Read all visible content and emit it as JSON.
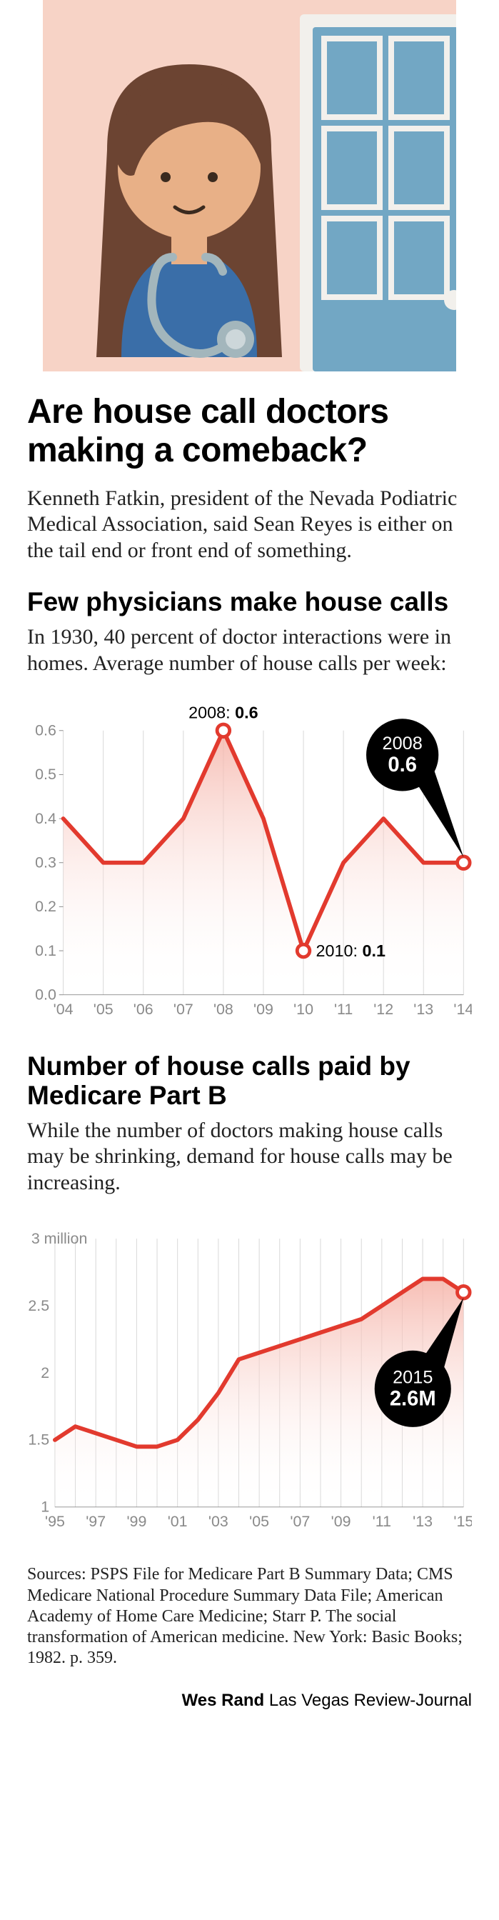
{
  "headline": "Are house call doctors making a comeback?",
  "intro": "Kenneth Fatkin, president of the Nevada Podiatric Medical Association, said Sean Reyes is either on the tail end or front end of something.",
  "chart1": {
    "title": "Few physicians make house calls",
    "subhead": "In 1930, 40 percent of doctor interactions were in homes. Average number of house calls per week:",
    "type": "area-line",
    "x_labels": [
      "'04",
      "'05",
      "'06",
      "'07",
      "'08",
      "'09",
      "'10",
      "'11",
      "'12",
      "'13",
      "'14"
    ],
    "y_ticks": [
      0.0,
      0.1,
      0.2,
      0.3,
      0.4,
      0.5,
      0.6
    ],
    "y_labels": [
      "0.0",
      "0.1",
      "0.2",
      "0.3",
      "0.4",
      "0.5",
      "0.6"
    ],
    "xlim": [
      0,
      10
    ],
    "ylim": [
      0,
      0.6
    ],
    "values": [
      0.4,
      0.3,
      0.3,
      0.4,
      0.6,
      0.4,
      0.1,
      0.3,
      0.4,
      0.3,
      0.3
    ],
    "peak_label_year": "2008:",
    "peak_label_val": "0.6",
    "min_label_year": "2010:",
    "min_label_val": "0.1",
    "callout_year": "2008",
    "callout_val": "0.6",
    "line_color": "#e23a2e",
    "fill_top": "#f5b3a8",
    "fill_bottom": "#ffffff",
    "grid_color": "#d7d7d7",
    "text_color": "#8a8a8a",
    "line_width": 6,
    "marker_r": 9,
    "callout_r": 52,
    "legend_pos": "none"
  },
  "chart2": {
    "title": "Number of house calls paid by Medicare Part B",
    "subhead": "While the number of doctors making house calls may be shrinking, demand for house calls may be increasing.",
    "type": "area-line",
    "x_labels": [
      "'95",
      "'97",
      "'99",
      "'01",
      "'03",
      "'05",
      "'07",
      "'09",
      "'11",
      "'13",
      "'15"
    ],
    "y_ticks": [
      1,
      1.5,
      2,
      2.5,
      3
    ],
    "y_labels": [
      "1",
      "1.5",
      "2",
      "2.5",
      "3 million"
    ],
    "xlim": [
      0,
      20
    ],
    "ylim": [
      1,
      3
    ],
    "values": [
      1.5,
      1.6,
      1.55,
      1.5,
      1.45,
      1.45,
      1.5,
      1.65,
      1.85,
      2.1,
      2.15,
      2.2,
      2.25,
      2.3,
      2.35,
      2.4,
      2.5,
      2.6,
      2.7,
      2.7,
      2.6
    ],
    "callout_year": "2015",
    "callout_val": "2.6M",
    "line_color": "#e23a2e",
    "fill_top": "#f5b3a8",
    "fill_bottom": "#ffffff",
    "grid_color": "#d7d7d7",
    "text_color": "#8a8a8a",
    "line_width": 6,
    "marker_r": 9,
    "callout_r": 55
  },
  "sources": "Sources: PSPS File for Medicare Part B Summary Data; CMS Medicare National Procedure Summary Data File; American Academy of Home Care Medicine; Starr P. The social transformation of American medicine. New York: Basic Books; 1982. p. 359.",
  "credit_name": "Wes Rand",
  "credit_org": "Las Vegas Review-Journal",
  "illustration": {
    "bg_color": "#f7d3c6",
    "door_color": "#72a7c4",
    "door_frame": "#f2f0ec",
    "knob_color": "#f2f0ec",
    "hair_color": "#6c4432",
    "skin_color": "#e8b087",
    "scrub_color": "#3a6ea8",
    "steth_color": "#a3b6bc"
  }
}
